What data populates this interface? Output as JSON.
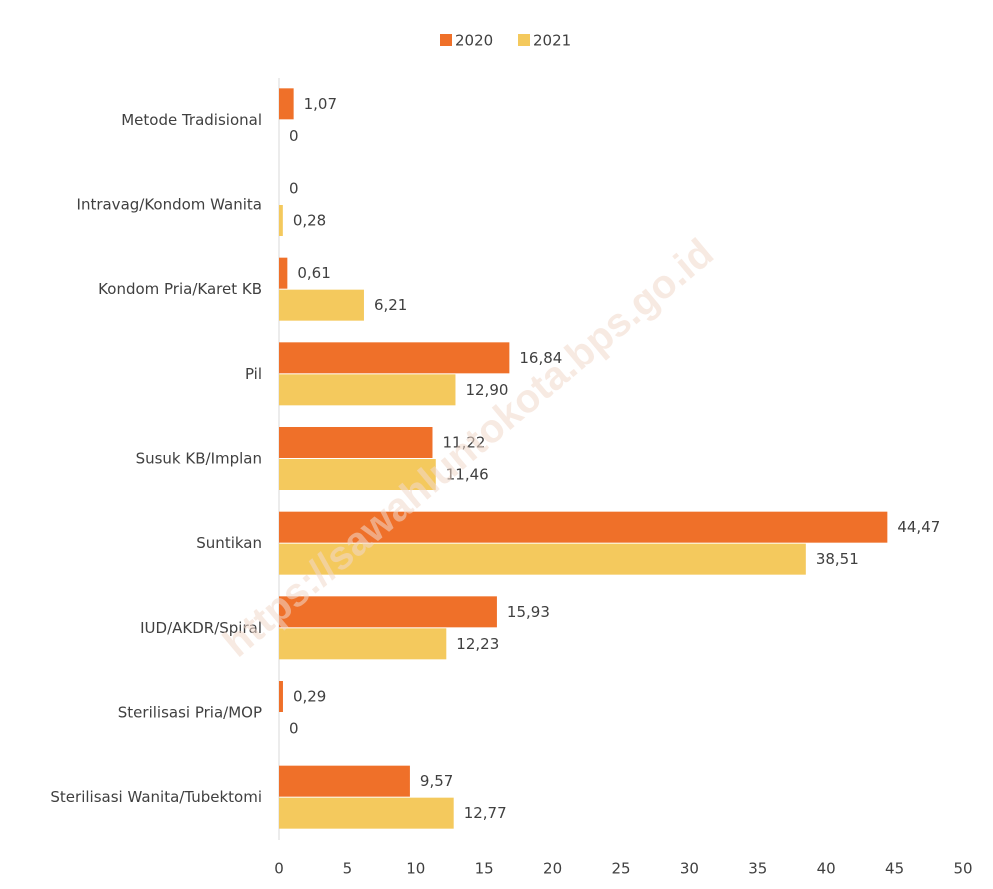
{
  "chart_data": {
    "type": "bar",
    "orientation": "horizontal",
    "categories": [
      "Metode Tradisional",
      "Intravag/Kondom Wanita",
      "Kondom Pria/Karet KB",
      "Pil",
      "Susuk KB/Implan",
      "Suntikan",
      "IUD/AKDR/Spiral",
      "Sterilisasi Pria/MOP",
      "Sterilisasi Wanita/Tubektomi"
    ],
    "series": [
      {
        "name": "2020",
        "color": "#ef7029",
        "values": [
          1.07,
          0,
          0.61,
          16.84,
          11.22,
          44.47,
          15.93,
          0.29,
          9.57
        ],
        "value_labels": [
          "1,07",
          "0",
          "0,61",
          "16,84",
          "11,22",
          "44,47",
          "15,93",
          "0,29",
          "9,57"
        ]
      },
      {
        "name": "2021",
        "color": "#f4c95d",
        "values": [
          0,
          0.28,
          6.21,
          12.9,
          11.46,
          38.51,
          12.23,
          0,
          12.77
        ],
        "value_labels": [
          "0",
          "0,28",
          "6,21",
          "12,90",
          "11,46",
          "38,51",
          "12,23",
          "0",
          "12,77"
        ]
      }
    ],
    "xlim": [
      0,
      50
    ],
    "xticks": [
      0,
      5,
      10,
      15,
      20,
      25,
      30,
      35,
      40,
      45,
      50
    ],
    "legend": "top",
    "grid": false,
    "annotations": [
      "https://sawahluntokota.bps.go.id"
    ]
  }
}
